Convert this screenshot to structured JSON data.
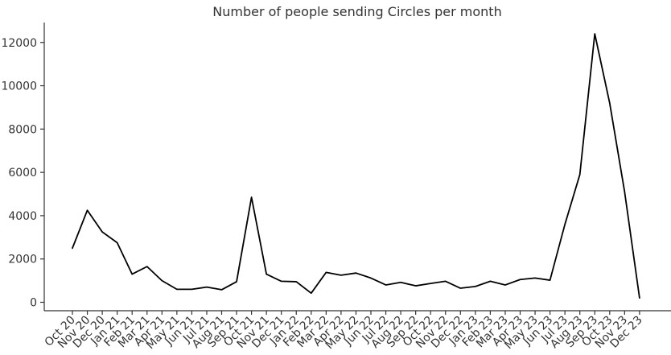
{
  "chart_data": {
    "type": "line",
    "title": "Number of people sending Circles per month",
    "xlabel": "",
    "ylabel": "",
    "ylim": [
      0,
      13000
    ],
    "yticks": [
      0,
      2000,
      4000,
      6000,
      8000,
      10000,
      12000
    ],
    "grid": false,
    "categories": [
      "Oct 20",
      "Nov 20",
      "Dec 20",
      "Jan 21",
      "Feb 21",
      "Mar 21",
      "Apr 21",
      "May 21",
      "Jun 21",
      "Jul 21",
      "Aug 21",
      "Sep 21",
      "Oct 21",
      "Nov 21",
      "Dec 21",
      "Jan 22",
      "Feb 22",
      "Mar 22",
      "Apr 22",
      "May 22",
      "Jun 22",
      "Jul 22",
      "Aug 22",
      "Sep 22",
      "Oct 22",
      "Nov 22",
      "Dec 22",
      "Jan 23",
      "Feb 23",
      "Mar 23",
      "Apr 23",
      "May 23",
      "Jun 23",
      "Jul 23",
      "Aug 23",
      "Sep 23",
      "Oct 23",
      "Nov 23",
      "Dec 23"
    ],
    "values": [
      2500,
      4250,
      3250,
      2750,
      1300,
      1650,
      1000,
      600,
      600,
      700,
      580,
      950,
      4850,
      1300,
      970,
      950,
      420,
      1380,
      1250,
      1350,
      1120,
      800,
      920,
      760,
      870,
      970,
      650,
      730,
      970,
      800,
      1050,
      1120,
      1020,
      3600,
      5900,
      12400,
      9200,
      5100,
      200
    ],
    "color": "#000000"
  }
}
